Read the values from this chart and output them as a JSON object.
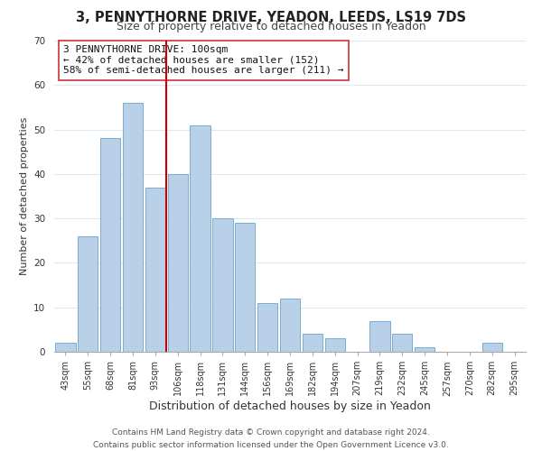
{
  "title": "3, PENNYTHORNE DRIVE, YEADON, LEEDS, LS19 7DS",
  "subtitle": "Size of property relative to detached houses in Yeadon",
  "xlabel": "Distribution of detached houses by size in Yeadon",
  "ylabel": "Number of detached properties",
  "footer_line1": "Contains HM Land Registry data © Crown copyright and database right 2024.",
  "footer_line2": "Contains public sector information licensed under the Open Government Licence v3.0.",
  "bar_labels": [
    "43sqm",
    "55sqm",
    "68sqm",
    "81sqm",
    "93sqm",
    "106sqm",
    "118sqm",
    "131sqm",
    "144sqm",
    "156sqm",
    "169sqm",
    "182sqm",
    "194sqm",
    "207sqm",
    "219sqm",
    "232sqm",
    "245sqm",
    "257sqm",
    "270sqm",
    "282sqm",
    "295sqm"
  ],
  "bar_values": [
    2,
    26,
    48,
    56,
    37,
    40,
    51,
    30,
    29,
    11,
    12,
    4,
    3,
    0,
    7,
    4,
    1,
    0,
    0,
    2,
    0
  ],
  "bar_color": "#b8d0e8",
  "bar_edge_color": "#7aadd0",
  "vline_x": 4.5,
  "vline_color": "#cc0000",
  "annotation_text": "3 PENNYTHORNE DRIVE: 100sqm\n← 42% of detached houses are smaller (152)\n58% of semi-detached houses are larger (211) →",
  "annotation_box_color": "#ffffff",
  "annotation_box_edge": "#cc3333",
  "ylim": [
    0,
    70
  ],
  "yticks": [
    0,
    10,
    20,
    30,
    40,
    50,
    60,
    70
  ],
  "title_fontsize": 10.5,
  "subtitle_fontsize": 9,
  "xlabel_fontsize": 9,
  "ylabel_fontsize": 8,
  "tick_fontsize": 7,
  "annotation_fontsize": 8,
  "footer_fontsize": 6.5
}
